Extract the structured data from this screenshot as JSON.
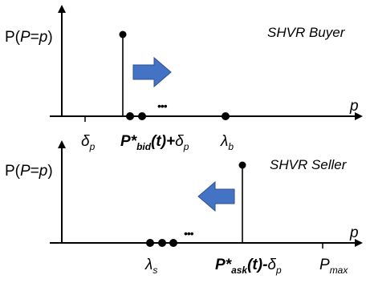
{
  "colors": {
    "ink": "#000000",
    "arrow": "#4472c4",
    "arrow_dark": "#2f528f"
  },
  "buyer": {
    "ylabel": {
      "pre": "P(",
      "var": "P",
      "eq": "=",
      "val": "p",
      "post": ")"
    },
    "title": "SHVR Buyer",
    "xvar": "p",
    "delta": {
      "sym": "δ",
      "sub": "p"
    },
    "bid": {
      "main": "P*",
      "sub": "bid",
      "mid": "(t)+",
      "delta": "δ",
      "dsub": "p"
    },
    "lambda": {
      "sym": "λ",
      "sub": "b"
    },
    "ellipsis": "•••",
    "arrow_direction": "right"
  },
  "seller": {
    "ylabel": {
      "pre": "P(",
      "var": "P",
      "eq": "=",
      "val": "p",
      "post": ")"
    },
    "title": "SHVR Seller",
    "xvar": "p",
    "lambda": {
      "sym": "λ",
      "sub": "s"
    },
    "ask": {
      "main": "P*",
      "sub": "ask",
      "mid": "(t)-",
      "delta": "δ",
      "dsub": "p"
    },
    "pmax": {
      "main": "P",
      "sub": "max"
    },
    "ellipsis": "•••",
    "arrow_direction": "left"
  }
}
